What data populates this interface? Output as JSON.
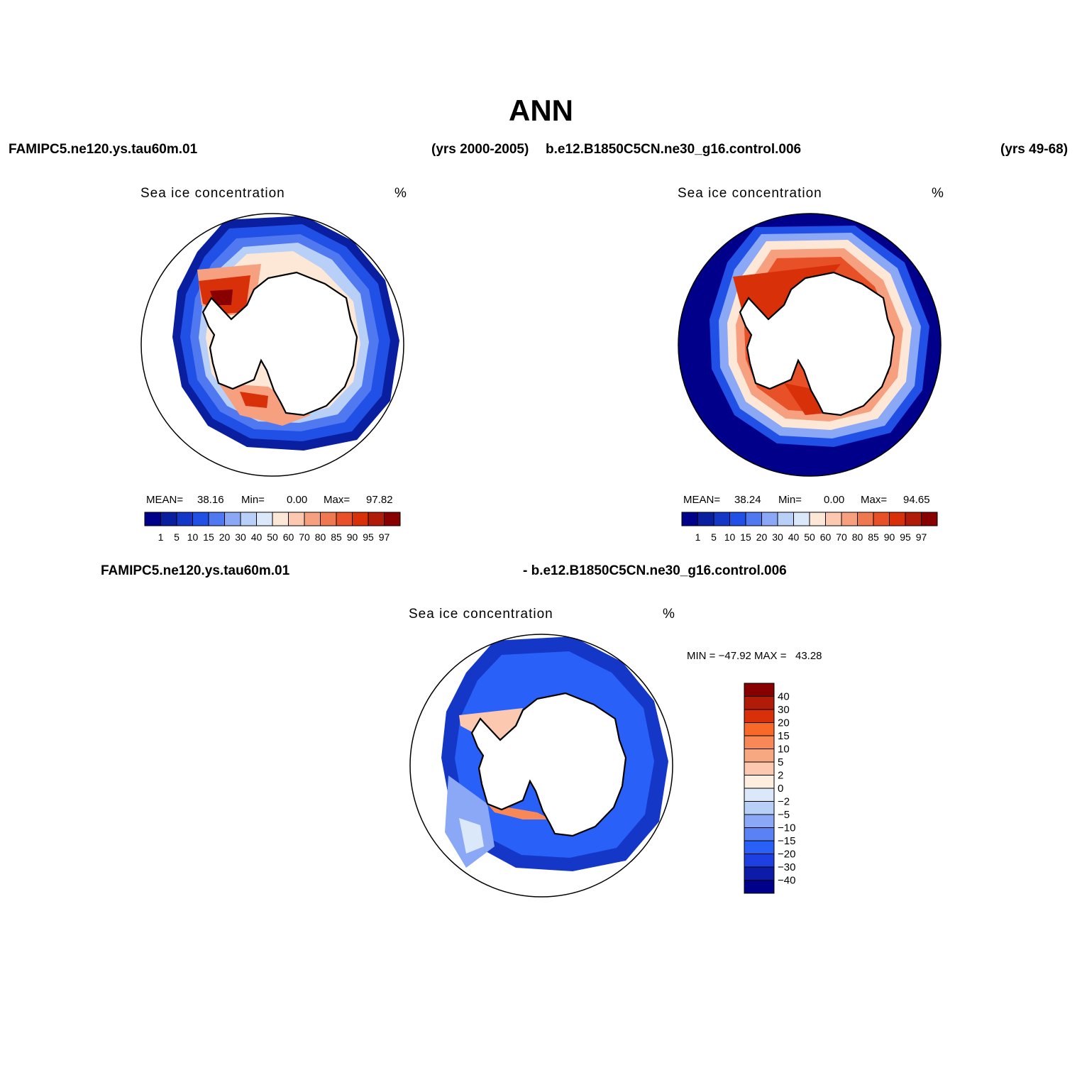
{
  "title": "ANN",
  "top_header": {
    "left_case": "FAMIPC5.ne120.ys.tau60m.01",
    "left_years": "(yrs 2000-2005)",
    "right_case": "b.e12.B1850C5CN.ne30_g16.control.006",
    "right_years": "(yrs 49-68)"
  },
  "bottom_header": {
    "left": "FAMIPC5.ne120.ys.tau60m.01",
    "right": "- b.e12.B1850C5CN.ne30_g16.control.006"
  },
  "colors": {
    "abs_scale": [
      "#00008b",
      "#0a1ea0",
      "#1537c8",
      "#2050e6",
      "#5078f0",
      "#8aa8f5",
      "#b8d0f8",
      "#dae8fa",
      "#fde8d8",
      "#fcc8b0",
      "#f6a080",
      "#f07850",
      "#e85028",
      "#d83008",
      "#b01c08",
      "#880000"
    ],
    "diff_scale": [
      "#00008b",
      "#0c1ca8",
      "#1e40e0",
      "#2860f8",
      "#5a82f4",
      "#8aa8f5",
      "#b8d0f8",
      "#dae8fa",
      "#fdeee0",
      "#fcc8b0",
      "#f8a880",
      "#f88858",
      "#f86828",
      "#d83008",
      "#b01c08",
      "#880000"
    ]
  },
  "panels": [
    {
      "id": "model",
      "title": "Sea ice concentration",
      "units": "%",
      "mean_label": "MEAN=",
      "mean": "38.16",
      "min_label": "Min=",
      "min": "0.00",
      "max_label": "Max=",
      "max": "97.82",
      "colorbar_labels": [
        "1",
        "5",
        "10",
        "15",
        "20",
        "30",
        "40",
        "50",
        "60",
        "70",
        "80",
        "85",
        "90",
        "95",
        "97"
      ]
    },
    {
      "id": "obs",
      "title": "Sea ice concentration",
      "units": "%",
      "mean_label": "MEAN=",
      "mean": "38.24",
      "min_label": "Min=",
      "min": "0.00",
      "max_label": "Max=",
      "max": "94.65",
      "colorbar_labels": [
        "1",
        "5",
        "10",
        "15",
        "20",
        "30",
        "40",
        "50",
        "60",
        "70",
        "80",
        "85",
        "90",
        "95",
        "97"
      ]
    }
  ],
  "diff": {
    "title": "Sea ice concentration",
    "units": "%",
    "minmax": "MIN = −47.92 MAX =   43.28",
    "colorbar_labels": [
      "40",
      "30",
      "20",
      "15",
      "10",
      "5",
      "2",
      "0",
      "−2",
      "−5",
      "−10",
      "−15",
      "−20",
      "−30",
      "−40"
    ]
  }
}
